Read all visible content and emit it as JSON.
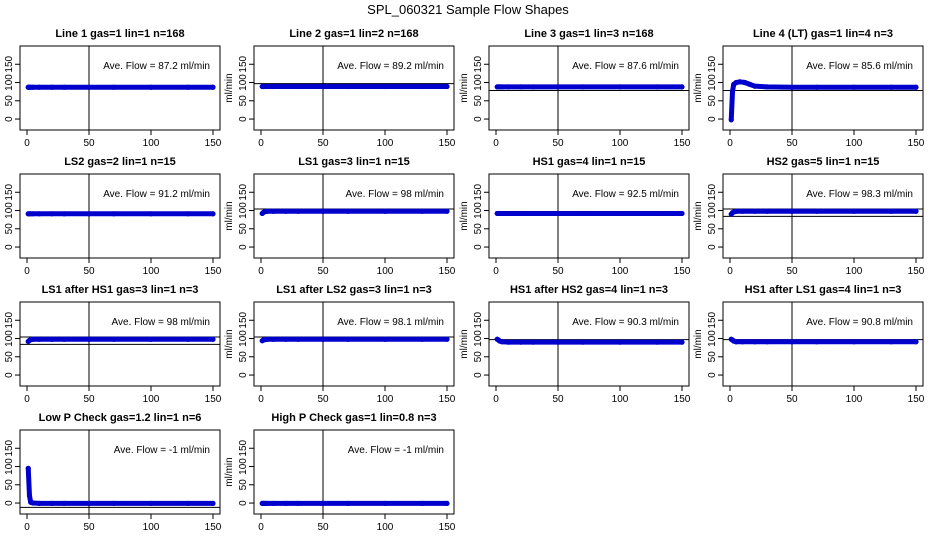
{
  "title": "SPL_060321  Sample Flow Shapes",
  "colors": {
    "points": "#0000cc",
    "axes": "#000000"
  },
  "chart_data": [
    {
      "type": "scatter",
      "title": "Line 1 gas=1 lin=1 n=168",
      "ylabel": "ml/min",
      "annotation": "Ave. Flow =  87.2  ml/min",
      "xlim": [
        0,
        150
      ],
      "ylim": [
        -30,
        200
      ],
      "xticks": [
        0,
        50,
        100,
        150
      ],
      "yticks": [
        0,
        50,
        100,
        150
      ],
      "vline": 50,
      "hlines": [],
      "x": [
        1,
        2,
        3,
        5,
        10,
        20,
        30,
        50,
        70,
        100,
        130,
        150
      ],
      "y": [
        87,
        87,
        87,
        87,
        87,
        87,
        87,
        87,
        87,
        87,
        87,
        87
      ]
    },
    {
      "type": "scatter",
      "title": "Line 2 gas=1 lin=2 n=168",
      "ylabel": "ml/min",
      "annotation": "Ave. Flow =  89.2  ml/min",
      "xlim": [
        0,
        150
      ],
      "ylim": [
        -30,
        200
      ],
      "xticks": [
        0,
        50,
        100,
        150
      ],
      "yticks": [
        0,
        50,
        100,
        150
      ],
      "vline": 50,
      "hlines": [
        97
      ],
      "x": [
        1,
        2,
        3,
        5,
        10,
        20,
        30,
        50,
        70,
        100,
        130,
        150
      ],
      "y": [
        89,
        89,
        89,
        89,
        89,
        89,
        89,
        89,
        89,
        89,
        89,
        89
      ]
    },
    {
      "type": "scatter",
      "title": "Line 3 gas=1 lin=3 n=168",
      "ylabel": "ml/min",
      "annotation": "Ave. Flow =  87.6  ml/min",
      "xlim": [
        0,
        150
      ],
      "ylim": [
        -30,
        200
      ],
      "xticks": [
        0,
        50,
        100,
        150
      ],
      "yticks": [
        0,
        50,
        100,
        150
      ],
      "vline": 50,
      "hlines": [
        78
      ],
      "x": [
        1,
        2,
        3,
        5,
        10,
        20,
        30,
        50,
        70,
        100,
        130,
        150
      ],
      "y": [
        88,
        88,
        88,
        88,
        88,
        88,
        88,
        88,
        88,
        88,
        88,
        88
      ]
    },
    {
      "type": "scatter",
      "title": "Line 4 (LT) gas=1 lin=4 n=3",
      "ylabel": "ml/min",
      "annotation": "Ave. Flow =  85.6  ml/min",
      "xlim": [
        0,
        150
      ],
      "ylim": [
        -30,
        200
      ],
      "xticks": [
        0,
        50,
        100,
        150
      ],
      "yticks": [
        0,
        50,
        100,
        150
      ],
      "vline": 50,
      "hlines": [
        78
      ],
      "x": [
        1,
        2,
        3,
        5,
        8,
        12,
        16,
        20,
        30,
        50,
        70,
        100,
        130,
        150
      ],
      "y": [
        -2,
        75,
        95,
        100,
        102,
        100,
        95,
        90,
        88,
        87,
        87,
        87,
        87,
        87
      ]
    },
    {
      "type": "scatter",
      "title": "LS2 gas=2 lin=1 n=15",
      "ylabel": "ml/min",
      "annotation": "Ave. Flow =  91.2  ml/min",
      "xlim": [
        0,
        150
      ],
      "ylim": [
        -30,
        200
      ],
      "xticks": [
        0,
        50,
        100,
        150
      ],
      "yticks": [
        0,
        50,
        100,
        150
      ],
      "vline": 50,
      "hlines": [],
      "x": [
        1,
        2,
        3,
        5,
        10,
        20,
        30,
        50,
        70,
        100,
        130,
        150
      ],
      "y": [
        91,
        91,
        91,
        91,
        91,
        91,
        91,
        91,
        91,
        91,
        91,
        91
      ]
    },
    {
      "type": "scatter",
      "title": "LS1 gas=3 lin=1 n=15",
      "ylabel": "ml/min",
      "annotation": "Ave. Flow =  98  ml/min",
      "xlim": [
        0,
        150
      ],
      "ylim": [
        -30,
        200
      ],
      "xticks": [
        0,
        50,
        100,
        150
      ],
      "yticks": [
        0,
        50,
        100,
        150
      ],
      "vline": 50,
      "hlines": [
        104
      ],
      "x": [
        1,
        2,
        3,
        5,
        10,
        20,
        30,
        50,
        70,
        100,
        130,
        150
      ],
      "y": [
        92,
        95,
        97,
        98,
        98,
        98,
        98,
        98,
        98,
        98,
        98,
        98
      ]
    },
    {
      "type": "scatter",
      "title": "HS1 gas=4 lin=1 n=15",
      "ylabel": "ml/min",
      "annotation": "Ave. Flow =  92.5  ml/min",
      "xlim": [
        0,
        150
      ],
      "ylim": [
        -30,
        200
      ],
      "xticks": [
        0,
        50,
        100,
        150
      ],
      "yticks": [
        0,
        50,
        100,
        150
      ],
      "vline": 50,
      "hlines": [],
      "x": [
        1,
        2,
        3,
        5,
        10,
        20,
        30,
        50,
        70,
        100,
        130,
        150
      ],
      "y": [
        92,
        92,
        92,
        92,
        92,
        92,
        92,
        92,
        92,
        92,
        92,
        92
      ]
    },
    {
      "type": "scatter",
      "title": "HS2 gas=5 lin=1 n=15",
      "ylabel": "ml/min",
      "annotation": "Ave. Flow =  98.3  ml/min",
      "xlim": [
        0,
        150
      ],
      "ylim": [
        -30,
        200
      ],
      "xticks": [
        0,
        50,
        100,
        150
      ],
      "yticks": [
        0,
        50,
        100,
        150
      ],
      "vline": 50,
      "hlines": [
        104,
        84
      ],
      "x": [
        1,
        2,
        3,
        5,
        10,
        20,
        30,
        50,
        70,
        100,
        130,
        150
      ],
      "y": [
        90,
        94,
        96,
        98,
        98,
        98,
        98,
        98,
        98,
        98,
        98,
        98
      ]
    },
    {
      "type": "scatter",
      "title": "LS1 after HS1 gas=3 lin=1 n=3",
      "ylabel": "ml/min",
      "annotation": "Ave. Flow =  98  ml/min",
      "xlim": [
        0,
        150
      ],
      "ylim": [
        -30,
        200
      ],
      "xticks": [
        0,
        50,
        100,
        150
      ],
      "yticks": [
        0,
        50,
        100,
        150
      ],
      "vline": 50,
      "hlines": [
        104,
        84
      ],
      "x": [
        1,
        2,
        3,
        5,
        10,
        20,
        30,
        50,
        70,
        100,
        130,
        150
      ],
      "y": [
        92,
        95,
        97,
        98,
        98,
        98,
        98,
        98,
        98,
        98,
        98,
        98
      ]
    },
    {
      "type": "scatter",
      "title": "LS1 after LS2 gas=3 lin=1 n=3",
      "ylabel": "ml/min",
      "annotation": "Ave. Flow =  98.1  ml/min",
      "xlim": [
        0,
        150
      ],
      "ylim": [
        -30,
        200
      ],
      "xticks": [
        0,
        50,
        100,
        150
      ],
      "yticks": [
        0,
        50,
        100,
        150
      ],
      "vline": 50,
      "hlines": [
        104
      ],
      "x": [
        1,
        2,
        3,
        5,
        10,
        20,
        30,
        50,
        70,
        100,
        130,
        150
      ],
      "y": [
        94,
        96,
        97,
        98,
        98,
        98,
        98,
        98,
        98,
        98,
        98,
        98
      ]
    },
    {
      "type": "scatter",
      "title": "HS1 after HS2 gas=4 lin=1 n=3",
      "ylabel": "ml/min",
      "annotation": "Ave. Flow =  90.3  ml/min",
      "xlim": [
        0,
        150
      ],
      "ylim": [
        -30,
        200
      ],
      "xticks": [
        0,
        50,
        100,
        150
      ],
      "yticks": [
        0,
        50,
        100,
        150
      ],
      "vline": 50,
      "hlines": [
        97
      ],
      "x": [
        1,
        2,
        3,
        5,
        10,
        20,
        30,
        50,
        70,
        100,
        130,
        150
      ],
      "y": [
        98,
        96,
        93,
        91,
        90,
        90,
        90,
        90,
        90,
        90,
        90,
        90
      ]
    },
    {
      "type": "scatter",
      "title": "HS1 after LS1 gas=4 lin=1 n=3",
      "ylabel": "ml/min",
      "annotation": "Ave. Flow =  90.8  ml/min",
      "xlim": [
        0,
        150
      ],
      "ylim": [
        -30,
        200
      ],
      "xticks": [
        0,
        50,
        100,
        150
      ],
      "yticks": [
        0,
        50,
        100,
        150
      ],
      "vline": 50,
      "hlines": [
        97
      ],
      "x": [
        1,
        2,
        3,
        5,
        10,
        20,
        30,
        50,
        70,
        100,
        130,
        150
      ],
      "y": [
        98,
        96,
        93,
        91,
        91,
        91,
        91,
        91,
        91,
        91,
        91,
        91
      ]
    },
    {
      "type": "scatter",
      "title": "Low P Check gas=1.2 lin=1 n=6",
      "ylabel": "ml/min",
      "annotation": "Ave. Flow =  -1  ml/min",
      "xlim": [
        0,
        150
      ],
      "ylim": [
        -30,
        200
      ],
      "xticks": [
        0,
        50,
        100,
        150
      ],
      "yticks": [
        0,
        50,
        100,
        150
      ],
      "vline": 50,
      "hlines": [
        -12
      ],
      "x": [
        1,
        2,
        3,
        5,
        10,
        20,
        30,
        50,
        70,
        100,
        130,
        150
      ],
      "y": [
        95,
        20,
        2,
        0,
        -1,
        -1,
        -1,
        -1,
        -1,
        -1,
        -1,
        -1
      ]
    },
    {
      "type": "scatter",
      "title": "High P Check gas=1 lin=0.8 n=3",
      "ylabel": "ml/min",
      "annotation": "Ave. Flow =  -1  ml/min",
      "xlim": [
        0,
        150
      ],
      "ylim": [
        -30,
        200
      ],
      "xticks": [
        0,
        50,
        100,
        150
      ],
      "yticks": [
        0,
        50,
        100,
        150
      ],
      "vline": 50,
      "hlines": [],
      "x": [
        1,
        2,
        3,
        5,
        10,
        20,
        30,
        50,
        70,
        100,
        130,
        150
      ],
      "y": [
        -1,
        -1,
        -1,
        -1,
        -1,
        -1,
        -1,
        -1,
        -1,
        -1,
        -1,
        -1
      ]
    }
  ]
}
